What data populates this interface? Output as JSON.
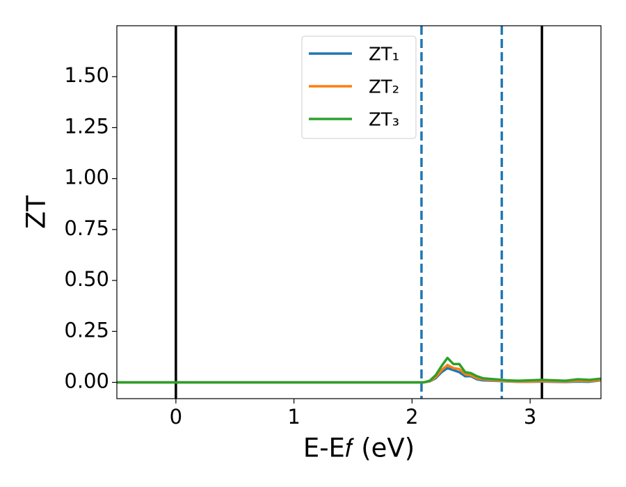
{
  "chart_data": {
    "type": "line",
    "xlabel": "E-E𝑓 (eV)",
    "ylabel": "ZT",
    "x": [
      -0.5,
      2.1,
      2.15,
      2.2,
      2.25,
      2.3,
      2.35,
      2.4,
      2.45,
      2.5,
      2.55,
      2.6,
      2.7,
      2.8,
      2.9,
      3.0,
      3.1,
      3.2,
      3.3,
      3.4,
      3.5,
      3.6
    ],
    "series": [
      {
        "name": "ZT₁",
        "color": "#1f77b4",
        "values": [
          0,
          0,
          0.005,
          0.02,
          0.05,
          0.07,
          0.06,
          0.05,
          0.03,
          0.03,
          0.015,
          0.01,
          0.008,
          0.005,
          0.003,
          0.003,
          0.004,
          0.003,
          0.002,
          0.004,
          0.003,
          0.01
        ]
      },
      {
        "name": "ZT₂",
        "color": "#ff7f0e",
        "values": [
          0,
          0,
          0.006,
          0.025,
          0.06,
          0.085,
          0.07,
          0.065,
          0.04,
          0.035,
          0.02,
          0.015,
          0.01,
          0.006,
          0.004,
          0.004,
          0.006,
          0.005,
          0.004,
          0.008,
          0.006,
          0.012
        ]
      },
      {
        "name": "ZT₃",
        "color": "#2ca02c",
        "values": [
          0,
          0,
          0.008,
          0.035,
          0.08,
          0.12,
          0.09,
          0.09,
          0.05,
          0.045,
          0.03,
          0.02,
          0.015,
          0.01,
          0.008,
          0.01,
          0.012,
          0.01,
          0.008,
          0.015,
          0.012,
          0.018
        ]
      }
    ],
    "vlines": [
      {
        "x": 0,
        "color": "#000000",
        "style": "solid"
      },
      {
        "x": 3.1,
        "color": "#000000",
        "style": "solid"
      },
      {
        "x": 2.08,
        "color": "#1f77b4",
        "style": "dashed"
      },
      {
        "x": 2.76,
        "color": "#1f77b4",
        "style": "dashed"
      }
    ],
    "xlim": [
      -0.5,
      3.6
    ],
    "ylim": [
      -0.08,
      1.75
    ],
    "xticks": [
      0,
      1,
      2,
      3
    ],
    "yticks": [
      {
        "value": 0,
        "label": "0.00"
      },
      {
        "value": 0.25,
        "label": "0.25"
      },
      {
        "value": 0.5,
        "label": "0.50"
      },
      {
        "value": 0.75,
        "label": "0.75"
      },
      {
        "value": 1,
        "label": "1.00"
      },
      {
        "value": 1.25,
        "label": "1.25"
      },
      {
        "value": 1.5,
        "label": "1.50"
      }
    ],
    "legend": "upper center",
    "grid": false
  }
}
